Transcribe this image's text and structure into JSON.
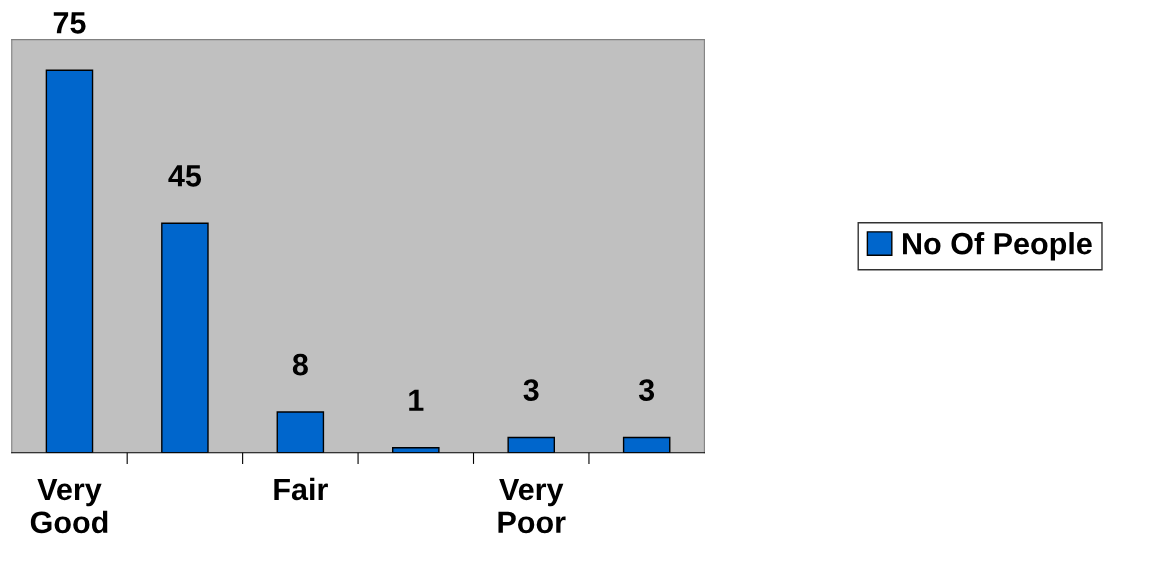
{
  "chart_data": {
    "type": "bar",
    "categories": [
      "Very Good",
      null,
      "Fair",
      null,
      "Very Poor",
      null
    ],
    "series": [
      {
        "name": "No Of People",
        "color": "#0066cc",
        "values": [
          75,
          45,
          8,
          1,
          3,
          3
        ]
      }
    ],
    "data_labels": true,
    "legend": "right",
    "grid": false
  }
}
